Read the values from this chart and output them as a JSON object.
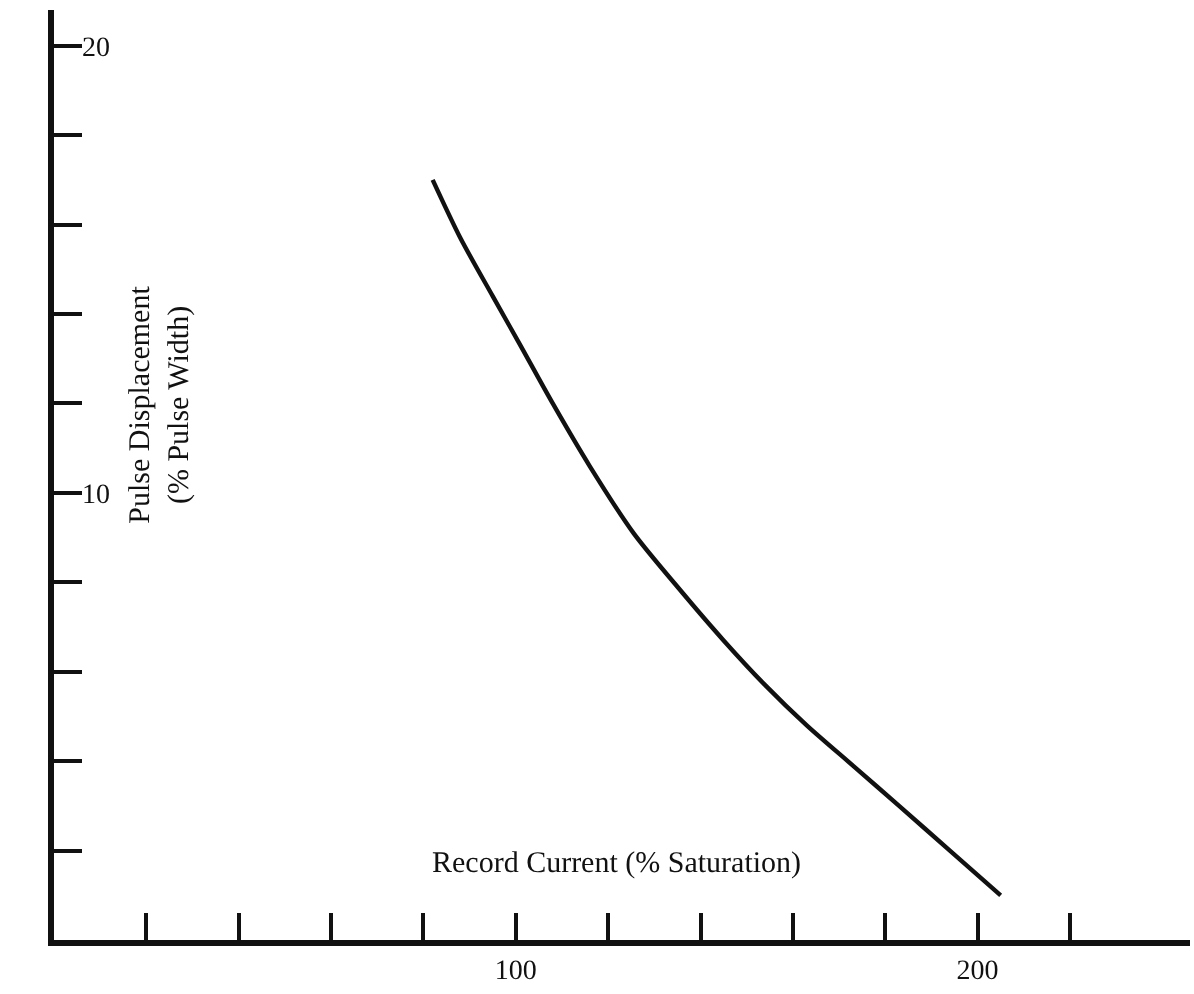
{
  "chart_data": {
    "type": "line",
    "xlabel": "Record Current (% Saturation)",
    "ylabel": "Pulse Displacement\n(% Pulse Width)",
    "x": [
      82,
      88,
      95,
      101,
      108,
      116,
      125.5,
      135,
      145,
      154,
      163,
      173,
      183,
      194,
      205
    ],
    "series": [
      {
        "color": "#111111",
        "values": [
          17,
          15.7,
          14.4,
          13.3,
          12.0,
          10.6,
          9.1,
          7.9,
          6.7,
          5.7,
          4.8,
          3.9,
          3.0,
          2.0,
          1.0
        ]
      }
    ],
    "xlim": [
      0,
      246
    ],
    "ylim": [
      0,
      20.8
    ],
    "xticks": [
      {
        "value": 20,
        "label": null
      },
      {
        "value": 40,
        "label": null
      },
      {
        "value": 60,
        "label": null
      },
      {
        "value": 80,
        "label": null
      },
      100,
      {
        "value": 120,
        "label": null
      },
      {
        "value": 140,
        "label": null
      },
      {
        "value": 160,
        "label": null
      },
      {
        "value": 180,
        "label": null
      },
      200,
      {
        "value": 220,
        "label": null
      }
    ],
    "yticks": [
      {
        "value": 2,
        "label": null
      },
      {
        "value": 4,
        "label": null
      },
      {
        "value": 6,
        "label": null
      },
      {
        "value": 8,
        "label": null
      },
      10,
      {
        "value": 12,
        "label": null
      },
      {
        "value": 14,
        "label": null
      },
      {
        "value": 16,
        "label": null
      },
      {
        "value": 18,
        "label": null
      },
      20
    ],
    "marker": "none",
    "line_style": "solid"
  }
}
